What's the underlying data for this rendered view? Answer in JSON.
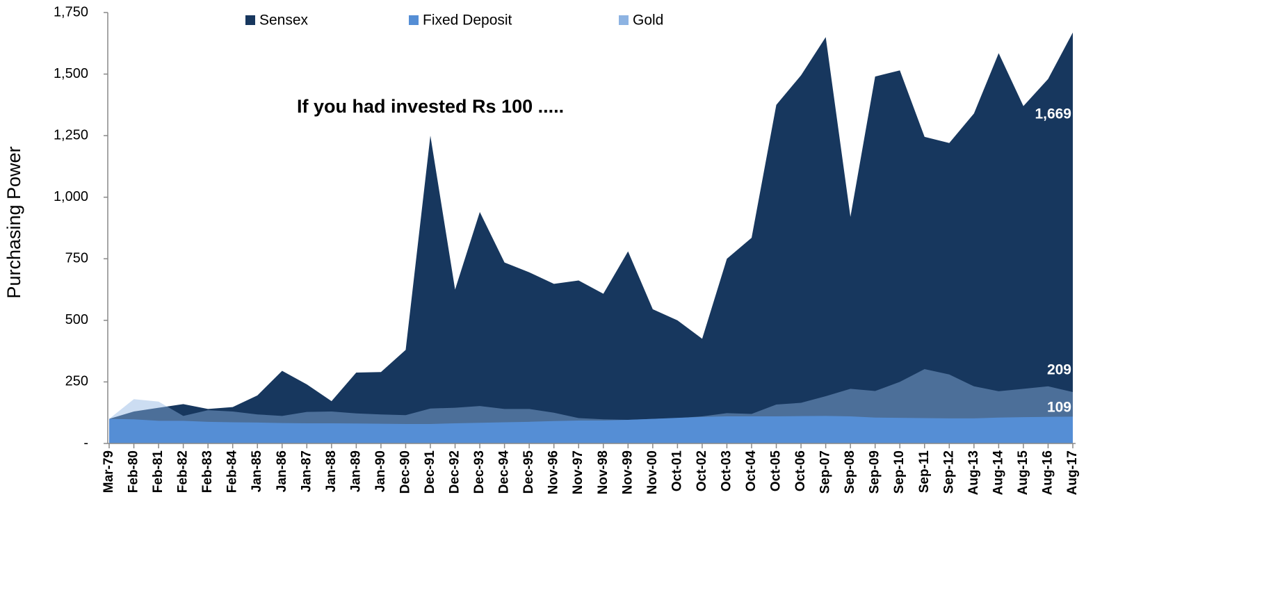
{
  "chart_data": {
    "type": "area",
    "annotation": "If you had invested Rs 100 .....",
    "ylabel": "Purchasing Power",
    "categories": [
      "Mar-79",
      "Feb-80",
      "Feb-81",
      "Feb-82",
      "Feb-83",
      "Feb-84",
      "Jan-85",
      "Jan-86",
      "Jan-87",
      "Jan-88",
      "Jan-89",
      "Jan-90",
      "Dec-90",
      "Dec-91",
      "Dec-92",
      "Dec-93",
      "Dec-94",
      "Dec-95",
      "Nov-96",
      "Nov-97",
      "Nov-98",
      "Nov-99",
      "Nov-00",
      "Oct-01",
      "Oct-02",
      "Oct-03",
      "Oct-04",
      "Oct-05",
      "Oct-06",
      "Sep-07",
      "Sep-08",
      "Sep-09",
      "Sep-10",
      "Sep-11",
      "Sep-12",
      "Aug-13",
      "Aug-14",
      "Aug-15",
      "Aug-16",
      "Aug-17"
    ],
    "series": [
      {
        "name": "Sensex",
        "color": "#17375e",
        "opacity": 1,
        "values": [
          100,
          130,
          145,
          160,
          140,
          148,
          195,
          295,
          240,
          172,
          288,
          290,
          380,
          1250,
          625,
          940,
          735,
          695,
          648,
          662,
          608,
          780,
          545,
          500,
          425,
          750,
          835,
          1375,
          1495,
          1650,
          920,
          1490,
          1515,
          1245,
          1220,
          1340,
          1585,
          1370,
          1480,
          1669
        ],
        "value_labels": [
          null,
          null,
          null,
          null,
          null,
          null,
          null,
          null,
          null,
          null,
          null,
          null,
          null,
          null,
          null,
          null,
          null,
          null,
          null,
          null,
          null,
          null,
          null,
          null,
          null,
          null,
          null,
          null,
          null,
          null,
          null,
          null,
          null,
          null,
          null,
          null,
          null,
          null,
          null,
          "1,669"
        ]
      },
      {
        "name": "Gold",
        "color": "#8db3e2",
        "opacity": 0.45,
        "values": [
          100,
          180,
          170,
          112,
          135,
          130,
          118,
          112,
          128,
          130,
          122,
          118,
          115,
          142,
          145,
          152,
          140,
          140,
          125,
          103,
          98,
          96,
          100,
          103,
          110,
          123,
          120,
          158,
          165,
          192,
          222,
          213,
          250,
          302,
          280,
          232,
          212,
          222,
          232,
          209
        ]
      },
      {
        "name": "Fixed Deposit",
        "color": "#558ed5",
        "opacity": 1,
        "values": [
          100,
          98,
          92,
          92,
          88,
          86,
          85,
          83,
          82,
          82,
          81,
          80,
          79,
          79,
          82,
          84,
          86,
          88,
          91,
          93,
          93,
          96,
          100,
          104,
          108,
          110,
          110,
          110,
          111,
          112,
          110,
          105,
          104,
          103,
          102,
          102,
          105,
          107,
          108,
          109
        ]
      }
    ],
    "legend_order": [
      0,
      2,
      1
    ],
    "ylim": [
      0,
      1750
    ],
    "yticks": [
      {
        "value": 0,
        "label": "-"
      },
      250,
      500,
      750,
      {
        "value": 1000,
        "label": "1,000"
      },
      {
        "value": 1250,
        "label": "1,250"
      },
      {
        "value": 1500,
        "label": "1,500"
      },
      {
        "value": 1750,
        "label": "1,750"
      }
    ]
  }
}
